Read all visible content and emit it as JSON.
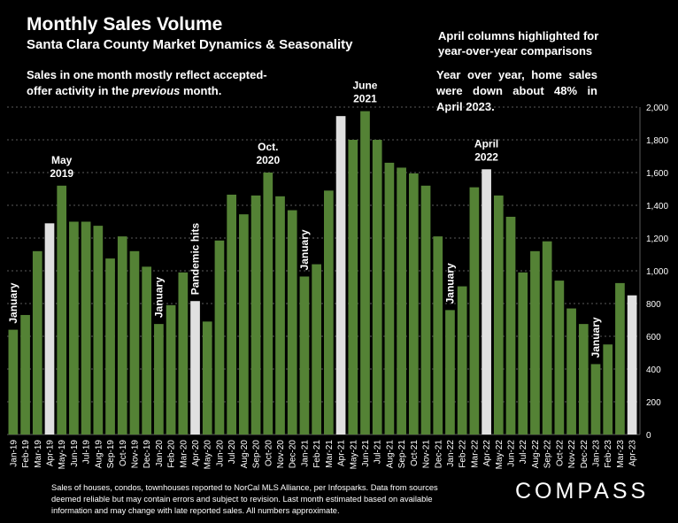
{
  "header": {
    "title": "Monthly Sales Volume",
    "subtitle": "Santa Clara County Market Dynamics & Seasonality",
    "note_part1": "Sales in one month mostly reflect accepted-offer activity in the ",
    "note_em": "previous",
    "note_part2": " month.",
    "highlight_note": "April columns highlighted for year-over-year comparisons",
    "yoy_note": "Year over year, home sales were down about 48% in April 2023."
  },
  "footer": {
    "footnote": "Sales of houses, condos, townhouses reported to NorCal MLS Alliance, per Infosparks. Data from sources deemed reliable but may contain errors and subject to revision. Last month estimated based on available information and may change with late reported sales. All numbers approximate.",
    "brand": "COMPASS"
  },
  "colors": {
    "background": "#000000",
    "bar": "#548235",
    "highlight_bar": "#e0e0e0",
    "grid": "#5a5a5a",
    "text": "#ffffff"
  },
  "chart_data": {
    "type": "bar",
    "title": "Monthly Sales Volume",
    "subtitle": "Santa Clara County Market Dynamics & Seasonality",
    "ylim": [
      0,
      2000
    ],
    "yticks": [
      "0",
      "200",
      "400",
      "600",
      "800",
      "1,000",
      "1,200",
      "1,400",
      "1,600",
      "1,800",
      "2,000"
    ],
    "y_axis_position": "right",
    "grid": true,
    "categories": [
      "Jan-19",
      "Feb-19",
      "Mar-19",
      "Apr-19",
      "May-19",
      "Jun-19",
      "Jul-19",
      "Aug-19",
      "Sep-19",
      "Oct-19",
      "Nov-19",
      "Dec-19",
      "Jan-20",
      "Feb-20",
      "Mar-20",
      "Apr-20",
      "May-20",
      "Jun-20",
      "Jul-20",
      "Aug-20",
      "Sep-20",
      "Oct-20",
      "Nov-20",
      "Dec-20",
      "Jan-21",
      "Feb-21",
      "Mar-21",
      "Apr-21",
      "May-21",
      "Jun-21",
      "Jul-21",
      "Aug-21",
      "Sep-21",
      "Oct-21",
      "Nov-21",
      "Dec-21",
      "Jan-22",
      "Feb-22",
      "Mar-22",
      "Apr-22",
      "May-22",
      "Jun-22",
      "Jul-22",
      "Aug-22",
      "Sep-22",
      "Oct-22",
      "Nov-22",
      "Dec-22",
      "Jan-23",
      "Feb-23",
      "Mar-23",
      "Apr-23"
    ],
    "values": [
      640,
      730,
      1120,
      1290,
      1520,
      1300,
      1300,
      1275,
      1075,
      1210,
      1120,
      1025,
      675,
      790,
      990,
      815,
      690,
      1185,
      1465,
      1345,
      1460,
      1600,
      1455,
      1370,
      965,
      1040,
      1490,
      1945,
      1800,
      1975,
      1800,
      1660,
      1630,
      1595,
      1520,
      1210,
      760,
      905,
      1510,
      1620,
      1460,
      1330,
      990,
      1120,
      1180,
      940,
      770,
      675,
      430,
      550,
      925,
      850
    ],
    "highlighted": [
      "Apr-19",
      "Apr-20",
      "Apr-21",
      "Apr-22",
      "Apr-23"
    ],
    "annotations": [
      {
        "text": "January",
        "category": "Jan-19",
        "rotated": true
      },
      {
        "text": "May",
        "category": "May-19",
        "rotated": false
      },
      {
        "text": "2019",
        "category": "May-19",
        "rotated": false
      },
      {
        "text": "January",
        "category": "Jan-20",
        "rotated": true
      },
      {
        "text": "Pandemic hits",
        "category": "Apr-20",
        "rotated": true
      },
      {
        "text": "Oct.",
        "category": "Oct-20",
        "rotated": false
      },
      {
        "text": "2020",
        "category": "Oct-20",
        "rotated": false
      },
      {
        "text": "January",
        "category": "Jan-21",
        "rotated": true
      },
      {
        "text": "June",
        "category": "Jun-21",
        "rotated": false
      },
      {
        "text": "2021",
        "category": "Jun-21",
        "rotated": false
      },
      {
        "text": "January",
        "category": "Jan-22",
        "rotated": true
      },
      {
        "text": "April",
        "category": "Apr-22",
        "rotated": false
      },
      {
        "text": "2022",
        "category": "Apr-22",
        "rotated": false
      },
      {
        "text": "January",
        "category": "Jan-23",
        "rotated": true
      }
    ]
  }
}
